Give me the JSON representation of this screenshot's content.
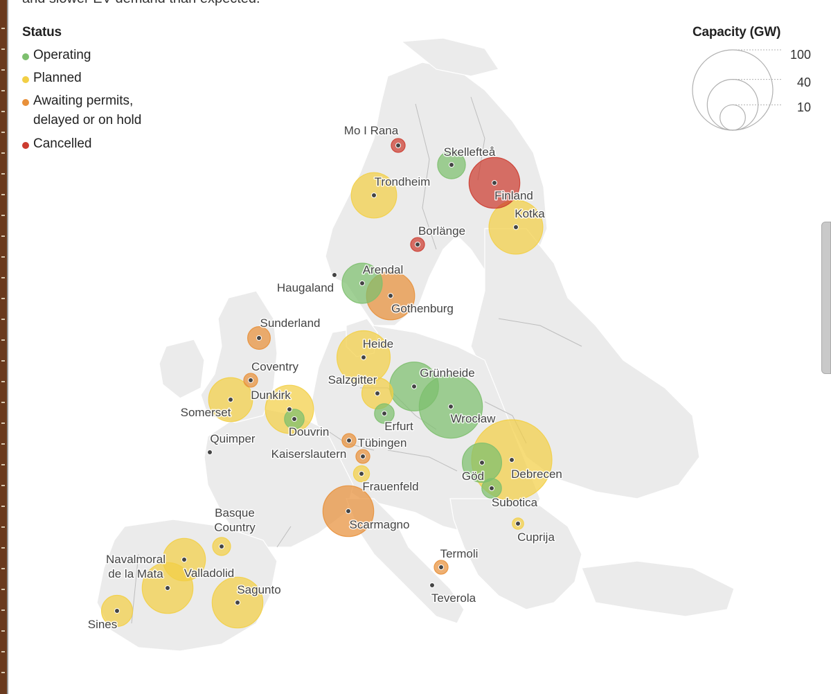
{
  "subtitle_fragment": "and slower EV demand than expected.",
  "legend": {
    "title": "Status",
    "items": [
      {
        "key": "operating",
        "label": "Operating",
        "color": "#7dbf6e"
      },
      {
        "key": "planned",
        "label": "Planned",
        "color": "#f2cf45"
      },
      {
        "key": "awaiting",
        "label": "Awaiting permits,",
        "label2": "delayed or on hold",
        "color": "#e8903a"
      },
      {
        "key": "cancelled",
        "label": "Cancelled",
        "color": "#cc3b2f"
      }
    ]
  },
  "capacity_legend": {
    "title": "Capacity (GW)",
    "values": [
      "100",
      "40",
      "10"
    ]
  },
  "status_colors": {
    "operating": "#7dbf6e",
    "planned": "#f2cf45",
    "awaiting": "#e8903a",
    "cancelled": "#cc3b2f"
  },
  "sites": [
    {
      "name": "Mo I Rana",
      "status": "cancelled",
      "capacity": 3
    },
    {
      "name": "Skellefteå",
      "status": "operating",
      "capacity": 12
    },
    {
      "name": "Trondheim",
      "status": "planned",
      "capacity": 32
    },
    {
      "name": "Finland",
      "status": "cancelled",
      "capacity": 40
    },
    {
      "name": "Kotka",
      "status": "planned",
      "capacity": 45
    },
    {
      "name": "Borlänge",
      "status": "cancelled",
      "capacity": 3
    },
    {
      "name": "Haugaland",
      "status": "planned",
      "capacity": 0
    },
    {
      "name": "Arendal",
      "status": "operating",
      "capacity": 25
    },
    {
      "name": "Gothenburg",
      "status": "awaiting",
      "capacity": 36
    },
    {
      "name": "Sunderland",
      "status": "awaiting",
      "capacity": 8
    },
    {
      "name": "Heide",
      "status": "planned",
      "capacity": 44
    },
    {
      "name": "Coventry",
      "status": "awaiting",
      "capacity": 3
    },
    {
      "name": "Salzgitter",
      "status": "planned",
      "capacity": 15
    },
    {
      "name": "Grünheide",
      "status": "operating",
      "capacity": 37
    },
    {
      "name": "Somerset",
      "status": "planned",
      "capacity": 30
    },
    {
      "name": "Dunkirk",
      "status": "planned",
      "capacity": 36
    },
    {
      "name": "Douvrin",
      "status": "operating",
      "capacity": 6
    },
    {
      "name": "Erfurt",
      "status": "operating",
      "capacity": 6
    },
    {
      "name": "Wrocław",
      "status": "operating",
      "capacity": 62
    },
    {
      "name": "Quimper",
      "status": "planned",
      "capacity": 0
    },
    {
      "name": "Tübingen",
      "status": "awaiting",
      "capacity": 3
    },
    {
      "name": "Kaiserslautern",
      "status": "awaiting",
      "capacity": 3
    },
    {
      "name": "Frauenfeld",
      "status": "planned",
      "capacity": 4
    },
    {
      "name": "Göd",
      "status": "operating",
      "capacity": 24
    },
    {
      "name": "Debrecen",
      "status": "planned",
      "capacity": 100
    },
    {
      "name": "Subotica",
      "status": "operating",
      "capacity": 6
    },
    {
      "name": "Scarmagno",
      "status": "awaiting",
      "capacity": 40
    },
    {
      "name": "Basque Country",
      "status": "planned",
      "capacity": 5
    },
    {
      "name": "Cuprija",
      "status": "planned",
      "capacity": 2
    },
    {
      "name": "Navalmoral de la Mata",
      "status": "planned",
      "capacity": 28
    },
    {
      "name": "Valladolid",
      "status": "planned",
      "capacity": 40
    },
    {
      "name": "Termoli",
      "status": "awaiting",
      "capacity": 3
    },
    {
      "name": "Sagunto",
      "status": "planned",
      "capacity": 40
    },
    {
      "name": "Teverola",
      "status": "planned",
      "capacity": 0
    },
    {
      "name": "Sines",
      "status": "planned",
      "capacity": 15
    }
  ]
}
